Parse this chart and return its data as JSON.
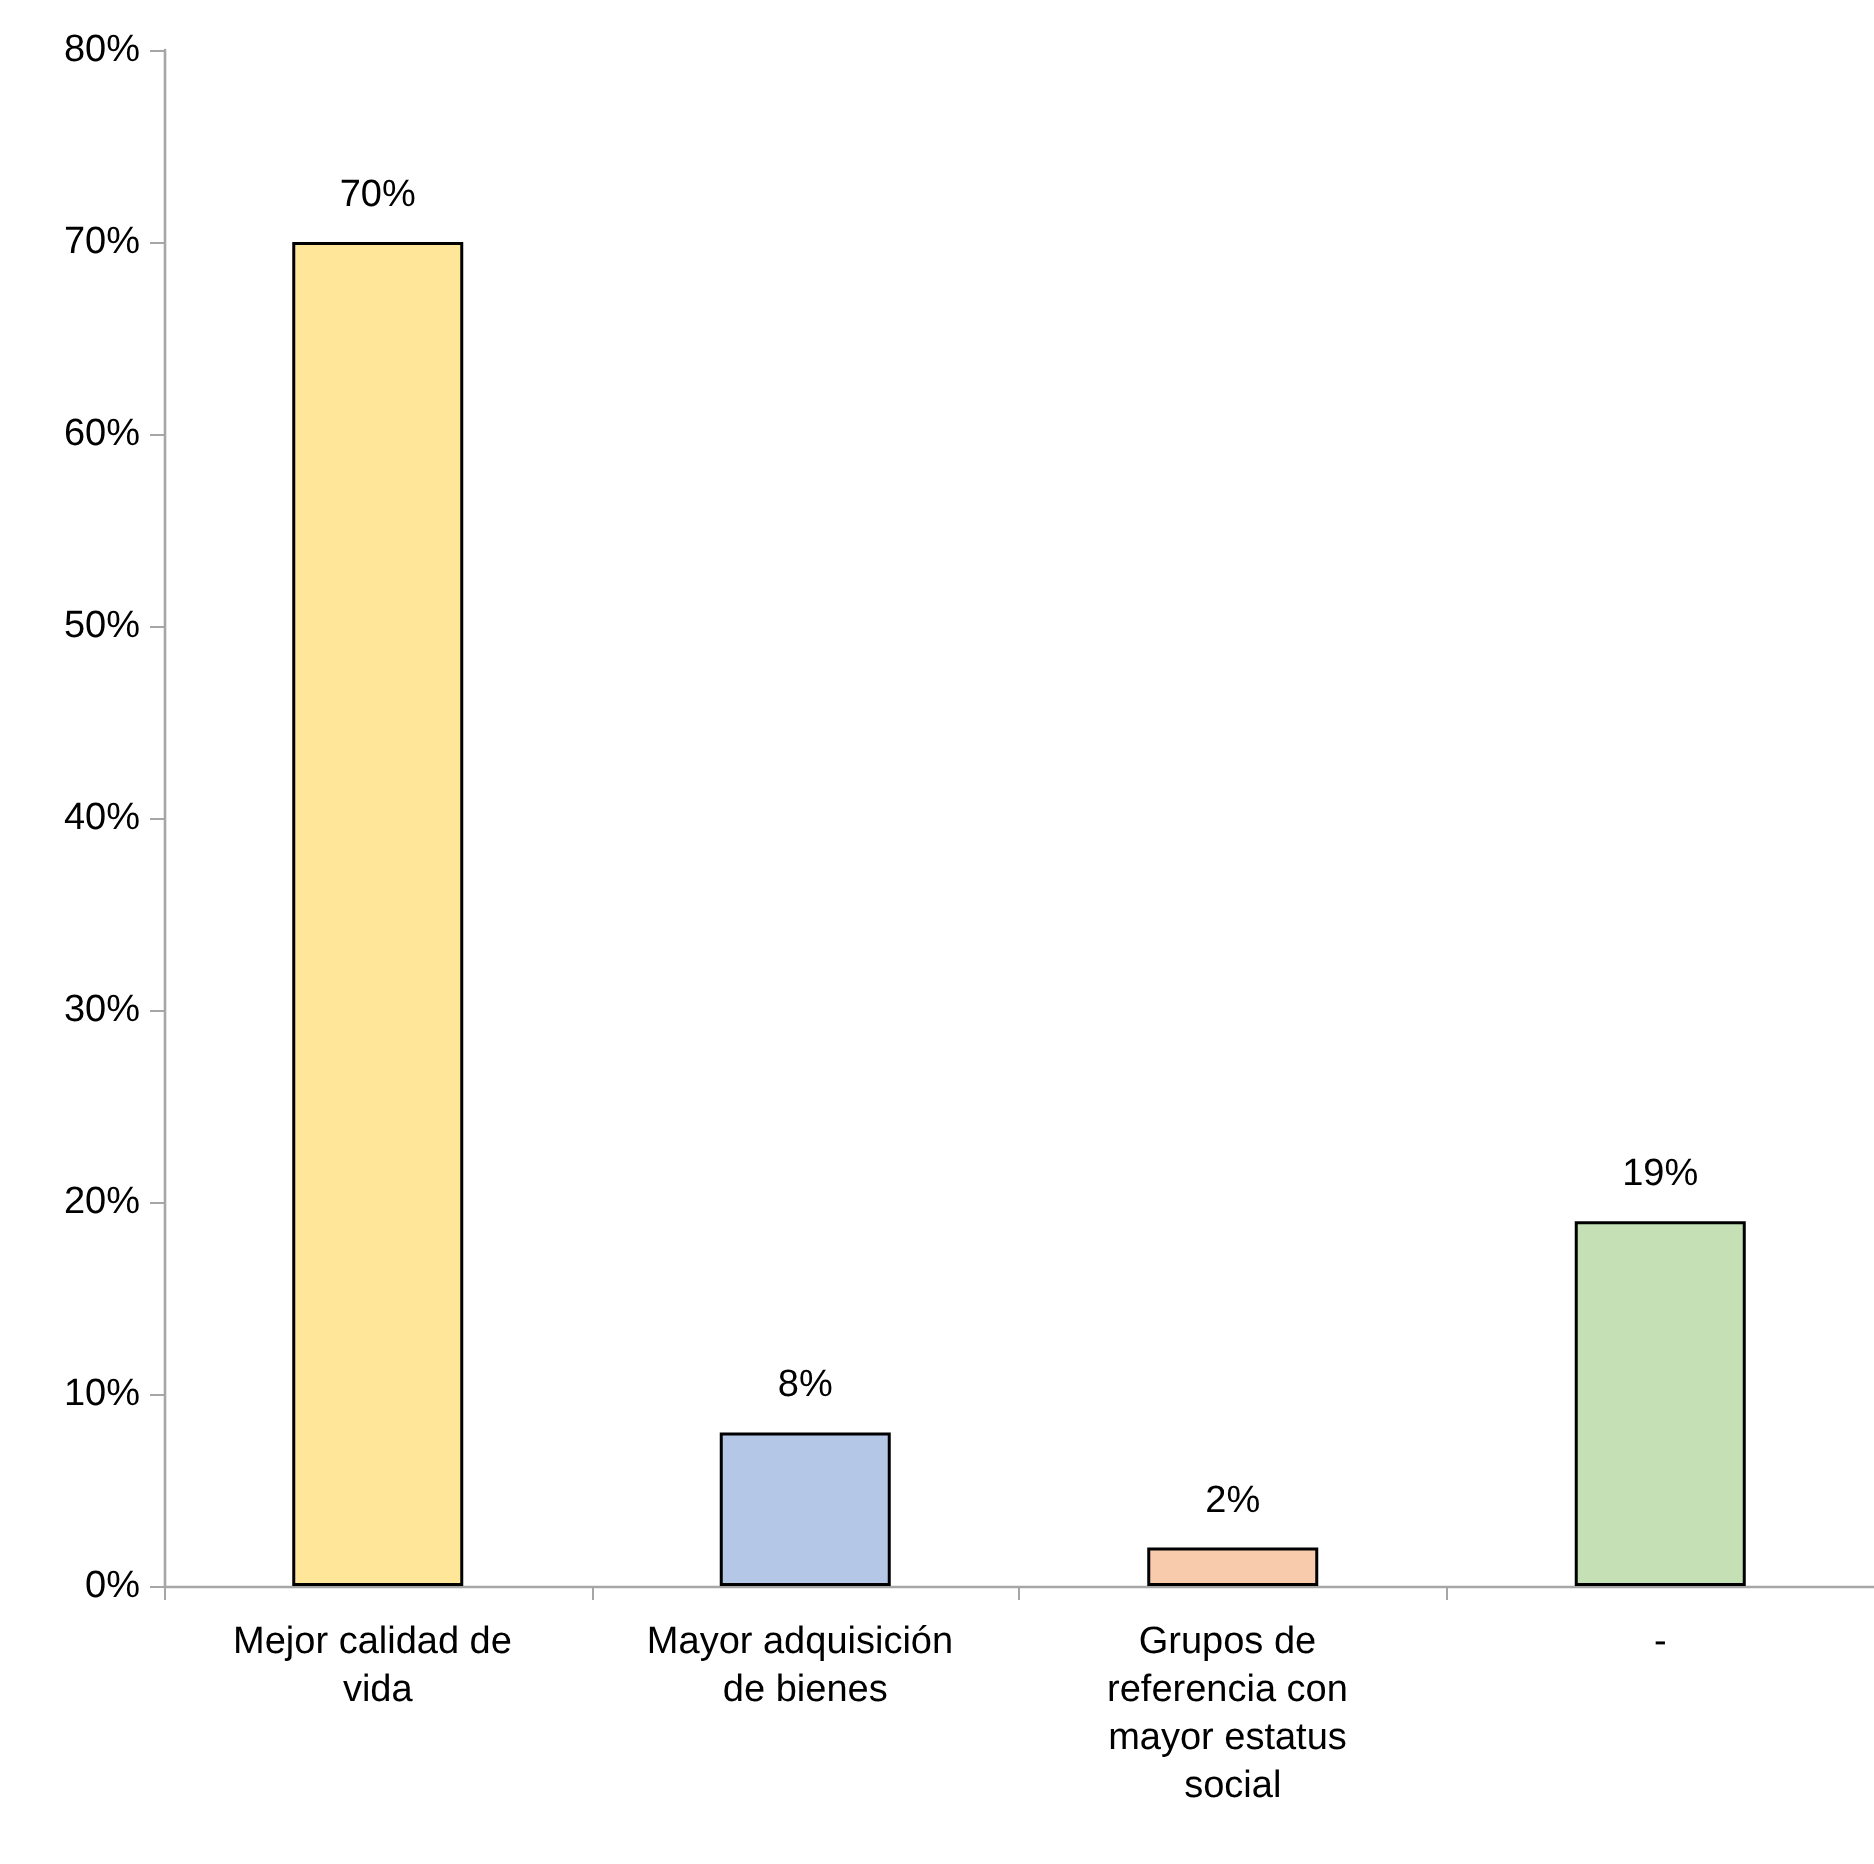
{
  "chart_data": {
    "type": "bar",
    "categories": [
      "Mejor calidad de vida",
      "Mayor adquisición de bienes",
      "Grupos de referencia con mayor estatus social",
      "-"
    ],
    "values": [
      70,
      8,
      2,
      19
    ],
    "colors": [
      "#ffe699",
      "#b4c7e7",
      "#f8cbad",
      "#c5e0b4"
    ],
    "value_labels": [
      "70%",
      "8%",
      "2%",
      "19%"
    ],
    "ylim": [
      0,
      80
    ],
    "yticks": [
      {
        "value": 0,
        "label": "0%"
      },
      {
        "value": 10,
        "label": "10%"
      },
      {
        "value": 20,
        "label": "20%"
      },
      {
        "value": 30,
        "label": "30%"
      },
      {
        "value": 40,
        "label": "40%"
      },
      {
        "value": 50,
        "label": "50%"
      },
      {
        "value": 60,
        "label": "60%"
      },
      {
        "value": 70,
        "label": "70%"
      },
      {
        "value": 80,
        "label": "80%"
      }
    ]
  }
}
